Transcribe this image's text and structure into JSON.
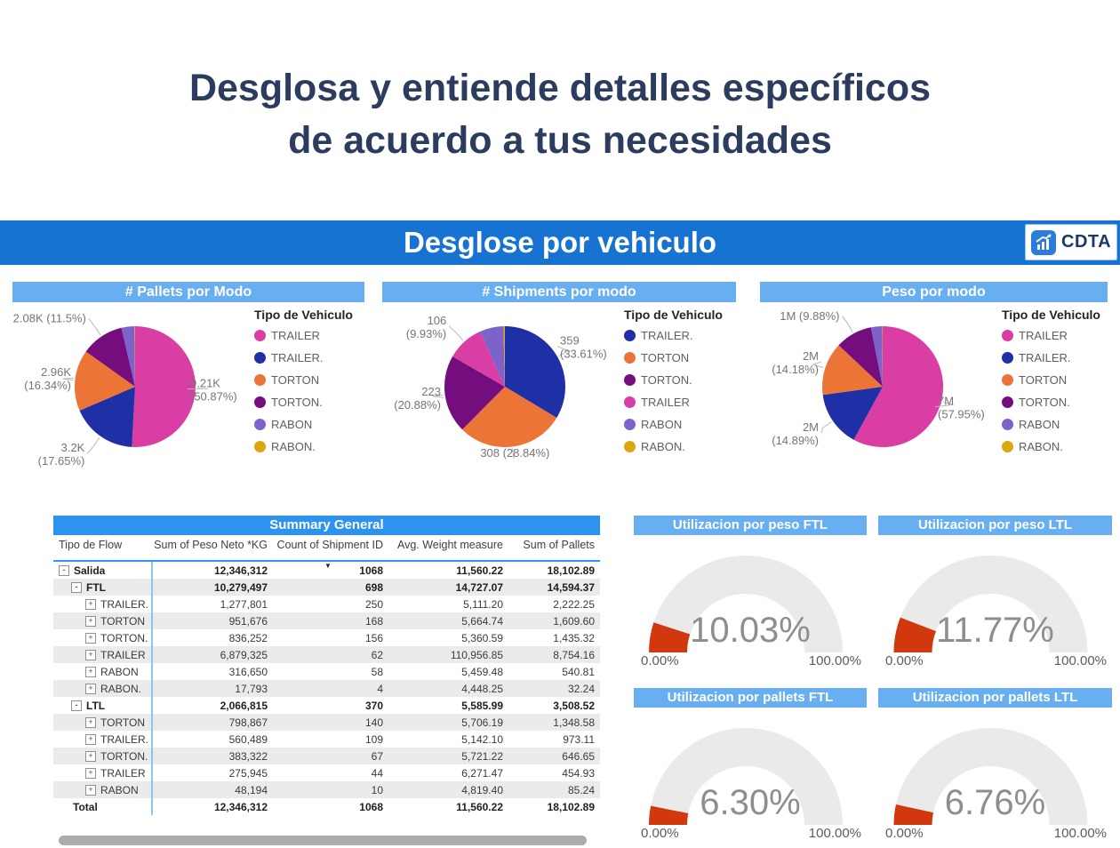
{
  "page": {
    "title_line1": "Desglosa y entiende detalles específicos",
    "title_line2": "de acuerdo a tus necesidades"
  },
  "banner": {
    "title": "Desglose por vehiculo",
    "logo_text": "CDTA"
  },
  "legend_title": "Tipo de Vehiculo",
  "colors": {
    "banner_bg": "#1673D2",
    "section_bar_bg": "#67AFF1",
    "table_header_bg": "#2D93EF",
    "gauge_fill": "#D1380D",
    "gauge_track": "#EAEAEA",
    "category_colors": {
      "TRAILER": "#DA3DA4",
      "TRAILER.": "#1F2FA5",
      "TORTON": "#EC7437",
      "TORTON.": "#740E7F",
      "RABON": "#7E62CC",
      "RABON.": "#DCA711"
    }
  },
  "chart_data": [
    {
      "type": "pie",
      "title": "# Pallets por Modo",
      "legend_title": "Tipo de Vehiculo",
      "slices": [
        {
          "name": "TRAILER",
          "pct": 50.87,
          "label": [
            "9.21K",
            "(50.87%)"
          ]
        },
        {
          "name": "TRAILER.",
          "pct": 17.65,
          "label": [
            "3.2K",
            "(17.65%)"
          ]
        },
        {
          "name": "TORTON",
          "pct": 16.34,
          "label": [
            "2.96K",
            "(16.34%)"
          ]
        },
        {
          "name": "TORTON.",
          "pct": 11.5,
          "label": [
            "2.08K (11.5%)"
          ]
        },
        {
          "name": "RABON",
          "pct": 3.46,
          "label": null
        },
        {
          "name": "RABON.",
          "pct": 0.18,
          "label": null
        }
      ]
    },
    {
      "type": "pie",
      "title": "# Shipments por modo",
      "legend_title": "Tipo de Vehiculo",
      "slices": [
        {
          "name": "TRAILER.",
          "pct": 33.61,
          "label": [
            "359",
            "(33.61%)"
          ]
        },
        {
          "name": "TORTON",
          "pct": 28.84,
          "label": [
            "308 (28.84%)"
          ]
        },
        {
          "name": "TORTON.",
          "pct": 20.88,
          "label": [
            "223",
            "(20.88%)"
          ]
        },
        {
          "name": "TRAILER",
          "pct": 9.93,
          "label": [
            "106",
            "(9.93%)"
          ]
        },
        {
          "name": "RABON",
          "pct": 6.37,
          "label": null
        },
        {
          "name": "RABON.",
          "pct": 0.37,
          "label": null
        }
      ]
    },
    {
      "type": "pie",
      "title": "Peso por modo",
      "legend_title": "Tipo de Vehiculo",
      "slices": [
        {
          "name": "TRAILER",
          "pct": 57.95,
          "label": [
            "7M",
            "(57.95%)"
          ]
        },
        {
          "name": "TRAILER.",
          "pct": 14.89,
          "label": [
            "2M",
            "(14.89%)"
          ]
        },
        {
          "name": "TORTON",
          "pct": 14.18,
          "label": [
            "2M",
            "(14.18%)"
          ]
        },
        {
          "name": "TORTON.",
          "pct": 9.88,
          "label": [
            "1M (9.88%)"
          ]
        },
        {
          "name": "RABON",
          "pct": 2.95,
          "label": null
        },
        {
          "name": "RABON.",
          "pct": 0.15,
          "label": null
        }
      ]
    },
    {
      "type": "table",
      "title": "Summary General",
      "columns": [
        "Tipo de Flow",
        "Sum of Peso Neto *KG",
        "Count of Shipment ID",
        "Avg. Weight measure",
        "Sum of Pallets"
      ],
      "sort_column": "Count of Shipment ID",
      "rows": [
        {
          "level": 1,
          "expander": "minus",
          "label": "Salida",
          "bold": true,
          "values": [
            "12,346,312",
            "1068",
            "11,560.22",
            "18,102.89"
          ]
        },
        {
          "level": 2,
          "expander": "minus",
          "label": "FTL",
          "bold": true,
          "values": [
            "10,279,497",
            "698",
            "14,727.07",
            "14,594.37"
          ]
        },
        {
          "level": 3,
          "expander": "plus",
          "label": "TRAILER.",
          "bold": false,
          "values": [
            "1,277,801",
            "250",
            "5,111.20",
            "2,222.25"
          ]
        },
        {
          "level": 3,
          "expander": "plus",
          "label": "TORTON",
          "bold": false,
          "values": [
            "951,676",
            "168",
            "5,664.74",
            "1,609.60"
          ]
        },
        {
          "level": 3,
          "expander": "plus",
          "label": "TORTON.",
          "bold": false,
          "values": [
            "836,252",
            "156",
            "5,360.59",
            "1,435.32"
          ]
        },
        {
          "level": 3,
          "expander": "plus",
          "label": "TRAILER",
          "bold": false,
          "values": [
            "6,879,325",
            "62",
            "110,956.85",
            "8,754.16"
          ]
        },
        {
          "level": 3,
          "expander": "plus",
          "label": "RABON",
          "bold": false,
          "values": [
            "316,650",
            "58",
            "5,459.48",
            "540.81"
          ]
        },
        {
          "level": 3,
          "expander": "plus",
          "label": "RABON.",
          "bold": false,
          "values": [
            "17,793",
            "4",
            "4,448.25",
            "32.24"
          ]
        },
        {
          "level": 2,
          "expander": "minus",
          "label": "LTL",
          "bold": true,
          "values": [
            "2,066,815",
            "370",
            "5,585.99",
            "3,508.52"
          ]
        },
        {
          "level": 3,
          "expander": "plus",
          "label": "TORTON",
          "bold": false,
          "values": [
            "798,867",
            "140",
            "5,706.19",
            "1,348.58"
          ]
        },
        {
          "level": 3,
          "expander": "plus",
          "label": "TRAILER.",
          "bold": false,
          "values": [
            "560,489",
            "109",
            "5,142.10",
            "973.11"
          ]
        },
        {
          "level": 3,
          "expander": "plus",
          "label": "TORTON.",
          "bold": false,
          "values": [
            "383,322",
            "67",
            "5,721.22",
            "646.65"
          ]
        },
        {
          "level": 3,
          "expander": "plus",
          "label": "TRAILER",
          "bold": false,
          "values": [
            "275,945",
            "44",
            "6,271.47",
            "454.93"
          ]
        },
        {
          "level": 3,
          "expander": "plus",
          "label": "RABON",
          "bold": false,
          "values": [
            "48,194",
            "10",
            "4,819.40",
            "85.24"
          ]
        },
        {
          "level": 1,
          "expander": null,
          "label": "Total",
          "bold": true,
          "values": [
            "12,346,312",
            "1068",
            "11,560.22",
            "18,102.89"
          ]
        }
      ]
    },
    {
      "type": "gauge",
      "title": "Utilizacion por peso FTL",
      "value": 10.03,
      "value_label": "10.03%",
      "min_label": "0.00%",
      "max_label": "100.00%"
    },
    {
      "type": "gauge",
      "title": "Utilizacion por peso LTL",
      "value": 11.77,
      "value_label": "11.77%",
      "min_label": "0.00%",
      "max_label": "100.00%"
    },
    {
      "type": "gauge",
      "title": "Utilizacion por pallets FTL",
      "value": 6.3,
      "value_label": "6.30%",
      "min_label": "0.00%",
      "max_label": "100.00%"
    },
    {
      "type": "gauge",
      "title": "Utilizacion por pallets LTL",
      "value": 6.76,
      "value_label": "6.76%",
      "min_label": "0.00%",
      "max_label": "100.00%"
    }
  ]
}
